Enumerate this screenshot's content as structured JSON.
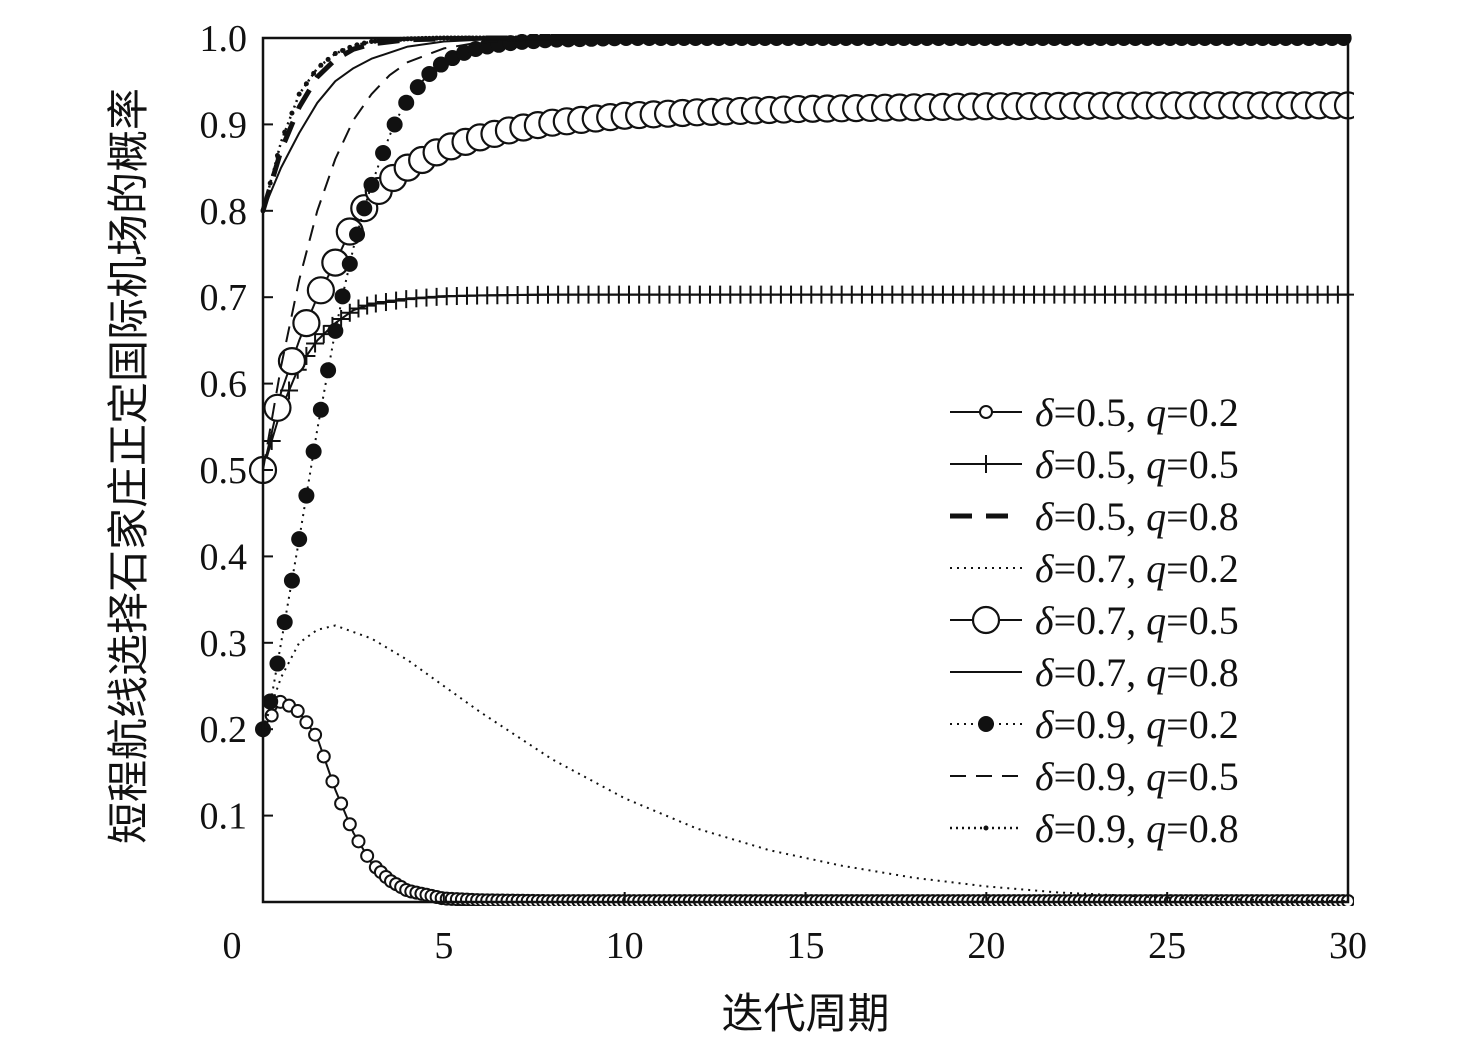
{
  "chart_data": {
    "type": "line",
    "xlabel": "迭代周期",
    "ylabel": "短程航线选择石家庄正定国际机场的概率",
    "xlim": [
      0,
      30
    ],
    "ylim": [
      0,
      1.0
    ],
    "x_ticks": [
      "0",
      "5",
      "10",
      "15",
      "20",
      "25",
      "30"
    ],
    "y_ticks": [
      "0.1",
      "0.2",
      "0.3",
      "0.4",
      "0.5",
      "0.6",
      "0.7",
      "0.8",
      "0.9",
      "1.0"
    ],
    "legend_position": "right-middle",
    "series": [
      {
        "name": "δ=0.5, q=0.2",
        "delta": "0.5",
        "q": "0.2",
        "style": "small-circle-solid",
        "x": [
          0,
          0.5,
          1,
          1.5,
          2,
          2.5,
          3,
          3.5,
          4,
          5,
          6,
          8,
          10,
          15,
          20,
          25,
          30
        ],
        "y": [
          0.2,
          0.233,
          0.22,
          0.19,
          0.13,
          0.08,
          0.045,
          0.025,
          0.013,
          0.004,
          0.002,
          0.001,
          0.001,
          0.001,
          0.001,
          0.001,
          0.001
        ]
      },
      {
        "name": "δ=0.5, q=0.5",
        "delta": "0.5",
        "q": "0.5",
        "style": "plus-solid",
        "x": [
          0,
          0.5,
          1,
          1.5,
          2,
          2.5,
          3,
          4,
          5,
          6,
          8,
          10,
          15,
          20,
          25,
          30
        ],
        "y": [
          0.5,
          0.57,
          0.62,
          0.65,
          0.67,
          0.685,
          0.692,
          0.698,
          0.701,
          0.702,
          0.703,
          0.703,
          0.703,
          0.703,
          0.703,
          0.703
        ]
      },
      {
        "name": "δ=0.5, q=0.8",
        "delta": "0.5",
        "q": "0.8",
        "style": "bold-dashed",
        "x": [
          0,
          0.5,
          1,
          1.5,
          2,
          2.5,
          3,
          4,
          5,
          6,
          8,
          10,
          15,
          20,
          25,
          30
        ],
        "y": [
          0.8,
          0.87,
          0.92,
          0.955,
          0.975,
          0.987,
          0.993,
          0.998,
          0.999,
          1,
          1,
          1,
          1,
          1,
          1,
          1
        ]
      },
      {
        "name": "δ=0.7, q=0.2",
        "delta": "0.7",
        "q": "0.2",
        "style": "dotted",
        "x": [
          0,
          0.5,
          1,
          1.5,
          2,
          3,
          4,
          5,
          6,
          8,
          10,
          12,
          14,
          16,
          18,
          20,
          22,
          25,
          28,
          30
        ],
        "y": [
          0.2,
          0.26,
          0.3,
          0.315,
          0.32,
          0.305,
          0.28,
          0.25,
          0.22,
          0.165,
          0.12,
          0.085,
          0.06,
          0.042,
          0.028,
          0.018,
          0.011,
          0.005,
          0.002,
          0.001
        ]
      },
      {
        "name": "δ=0.7, q=0.5",
        "delta": "0.7",
        "q": "0.5",
        "style": "large-circle-solid",
        "x": [
          0,
          0.5,
          1,
          1.5,
          2,
          2.5,
          3,
          3.5,
          4,
          5,
          6,
          7,
          8,
          10,
          12,
          15,
          20,
          25,
          30
        ],
        "y": [
          0.5,
          0.59,
          0.65,
          0.7,
          0.74,
          0.785,
          0.815,
          0.835,
          0.85,
          0.872,
          0.885,
          0.895,
          0.902,
          0.91,
          0.914,
          0.918,
          0.921,
          0.922,
          0.922
        ]
      },
      {
        "name": "δ=0.7, q=0.8",
        "delta": "0.7",
        "q": "0.8",
        "style": "solid",
        "x": [
          0,
          0.5,
          1,
          1.5,
          2,
          2.5,
          3,
          4,
          5,
          6,
          8,
          10,
          15,
          20,
          25,
          30
        ],
        "y": [
          0.8,
          0.85,
          0.89,
          0.925,
          0.95,
          0.965,
          0.976,
          0.99,
          0.996,
          0.998,
          1,
          1,
          1,
          1,
          1,
          1
        ]
      },
      {
        "name": "δ=0.9, q=0.2",
        "delta": "0.9",
        "q": "0.2",
        "style": "filled-dot-dotted",
        "x": [
          0,
          0.25,
          0.5,
          0.75,
          1,
          1.25,
          1.5,
          1.75,
          2,
          2.25,
          2.5,
          2.75,
          3,
          3.25,
          3.5,
          3.75,
          4,
          4.5,
          5,
          5.5,
          6,
          7,
          8,
          10,
          12,
          15,
          20,
          25,
          30
        ],
        "y": [
          0.2,
          0.24,
          0.3,
          0.36,
          0.42,
          0.483,
          0.547,
          0.604,
          0.661,
          0.711,
          0.757,
          0.796,
          0.83,
          0.859,
          0.887,
          0.91,
          0.928,
          0.955,
          0.972,
          0.982,
          0.989,
          0.995,
          0.998,
          1,
          1,
          1,
          1,
          1,
          1
        ]
      },
      {
        "name": "δ=0.9, q=0.5",
        "delta": "0.9",
        "q": "0.5",
        "style": "dashed",
        "x": [
          0,
          0.5,
          1,
          1.5,
          2,
          2.5,
          3,
          3.5,
          4,
          5,
          6,
          8,
          10,
          15,
          20,
          25,
          30
        ],
        "y": [
          0.5,
          0.62,
          0.72,
          0.8,
          0.86,
          0.905,
          0.935,
          0.957,
          0.972,
          0.988,
          0.995,
          0.999,
          1,
          1,
          1,
          1,
          1
        ]
      },
      {
        "name": "δ=0.9, q=0.8",
        "delta": "0.9",
        "q": "0.8",
        "style": "dotted-small-dot",
        "x": [
          0,
          0.5,
          1,
          1.5,
          2,
          2.5,
          3,
          4,
          5,
          8,
          10,
          15,
          20,
          25,
          30
        ],
        "y": [
          0.8,
          0.88,
          0.935,
          0.965,
          0.982,
          0.991,
          0.996,
          0.999,
          1,
          1,
          1,
          1,
          1,
          1,
          1
        ]
      }
    ]
  }
}
